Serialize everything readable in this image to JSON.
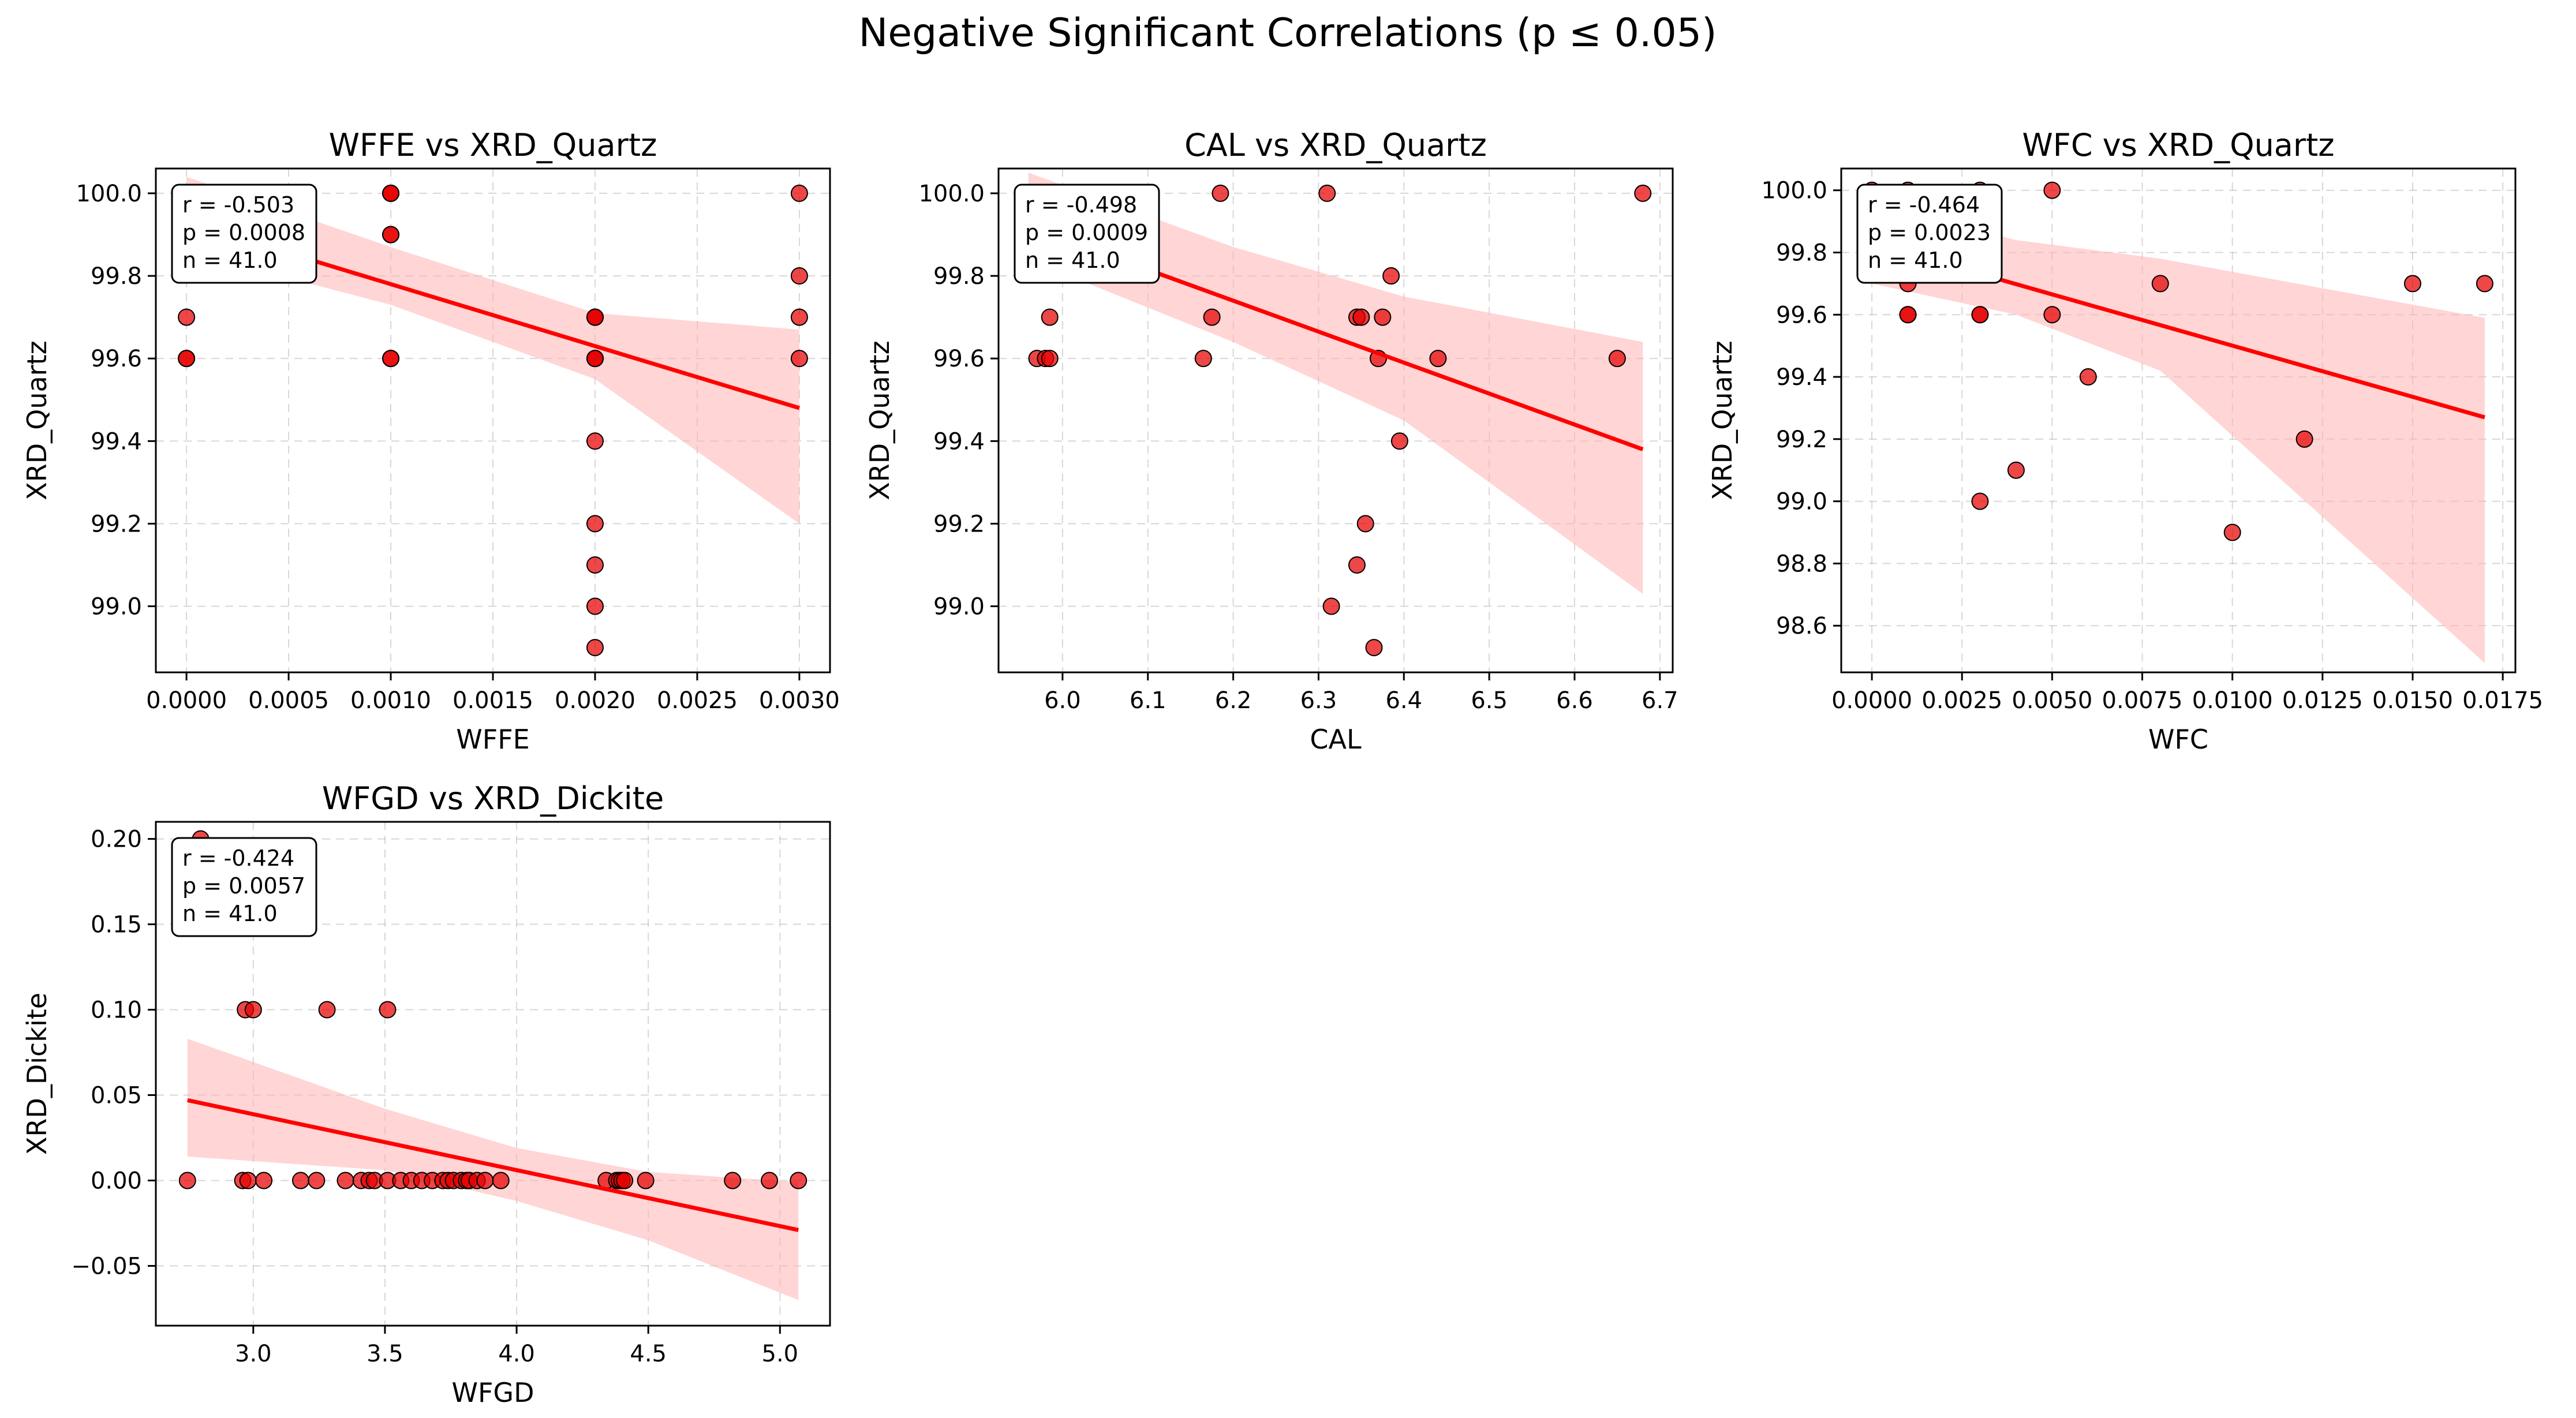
{
  "figure_title": "Negative Significant Correlations (p ≤ 0.05)",
  "chart_data": [
    {
      "type": "scatter",
      "title": "WFFE vs XRD_Quartz",
      "xlabel": "WFFE",
      "ylabel": "XRD_Quartz",
      "xlim": [
        -0.00015,
        0.00315
      ],
      "ylim": [
        98.84,
        100.06
      ],
      "xticks": [
        0.0,
        0.0005,
        0.001,
        0.0015,
        0.002,
        0.0025,
        0.003
      ],
      "xtick_labels": [
        "0.0000",
        "0.0005",
        "0.0010",
        "0.0015",
        "0.0020",
        "0.0025",
        "0.0030"
      ],
      "yticks": [
        99.0,
        99.2,
        99.4,
        99.6,
        99.8,
        100.0
      ],
      "ytick_labels": [
        "99.0",
        "99.2",
        "99.4",
        "99.6",
        "99.8",
        "100.0"
      ],
      "stats": [
        "r = -0.503",
        "p = 0.0008",
        "n = 41.0"
      ],
      "points": [
        [
          0,
          100.0
        ],
        [
          0,
          100.0
        ],
        [
          0,
          99.9
        ],
        [
          0,
          99.9
        ],
        [
          0,
          99.7
        ],
        [
          0,
          99.6
        ],
        [
          0,
          99.6
        ],
        [
          0.001,
          100.0
        ],
        [
          0.001,
          100.0
        ],
        [
          0.001,
          100.0
        ],
        [
          0.001,
          99.9
        ],
        [
          0.001,
          99.9
        ],
        [
          0.001,
          99.6
        ],
        [
          0.001,
          99.6
        ],
        [
          0.002,
          99.7
        ],
        [
          0.002,
          99.7
        ],
        [
          0.002,
          99.7
        ],
        [
          0.002,
          99.6
        ],
        [
          0.002,
          99.6
        ],
        [
          0.002,
          99.6
        ],
        [
          0.002,
          99.4
        ],
        [
          0.002,
          99.2
        ],
        [
          0.002,
          99.1
        ],
        [
          0.002,
          99.0
        ],
        [
          0.002,
          98.9
        ],
        [
          0.003,
          100.0
        ],
        [
          0.003,
          99.8
        ],
        [
          0.003,
          99.7
        ],
        [
          0.003,
          99.6
        ]
      ],
      "fit": {
        "x": [
          0.0,
          0.003
        ],
        "y": [
          99.93,
          99.48
        ]
      },
      "ci": {
        "x": [
          0.0,
          0.001,
          0.002,
          0.003
        ],
        "lower": [
          99.86,
          99.73,
          99.55,
          99.2
        ],
        "upper": [
          100.04,
          99.87,
          99.71,
          99.67
        ]
      }
    },
    {
      "type": "scatter",
      "title": "CAL vs XRD_Quartz",
      "xlabel": "CAL",
      "ylabel": "XRD_Quartz",
      "xlim": [
        5.925,
        6.715
      ],
      "ylim": [
        98.84,
        100.06
      ],
      "xticks": [
        6.0,
        6.1,
        6.2,
        6.3,
        6.4,
        6.5,
        6.6,
        6.7
      ],
      "xtick_labels": [
        "6.0",
        "6.1",
        "6.2",
        "6.3",
        "6.4",
        "6.5",
        "6.6",
        "6.7"
      ],
      "yticks": [
        99.0,
        99.2,
        99.4,
        99.6,
        99.8,
        100.0
      ],
      "ytick_labels": [
        "99.0",
        "99.2",
        "99.4",
        "99.6",
        "99.8",
        "100.0"
      ],
      "stats": [
        "r = -0.498",
        "p = 0.0009",
        "n = 41.0"
      ],
      "points": [
        [
          5.96,
          100.0
        ],
        [
          5.97,
          100.0
        ],
        [
          5.98,
          100.0
        ],
        [
          5.99,
          100.0
        ],
        [
          6.005,
          100.0
        ],
        [
          6.185,
          100.0
        ],
        [
          6.31,
          100.0
        ],
        [
          6.68,
          100.0
        ],
        [
          5.975,
          99.9
        ],
        [
          6.385,
          99.8
        ],
        [
          5.985,
          99.7
        ],
        [
          6.175,
          99.7
        ],
        [
          6.345,
          99.7
        ],
        [
          6.35,
          99.7
        ],
        [
          6.375,
          99.7
        ],
        [
          5.97,
          99.6
        ],
        [
          5.98,
          99.6
        ],
        [
          5.985,
          99.6
        ],
        [
          6.165,
          99.6
        ],
        [
          6.37,
          99.6
        ],
        [
          6.44,
          99.6
        ],
        [
          6.65,
          99.6
        ],
        [
          6.395,
          99.4
        ],
        [
          6.355,
          99.2
        ],
        [
          6.345,
          99.1
        ],
        [
          6.315,
          99.0
        ],
        [
          6.365,
          98.9
        ]
      ],
      "fit": {
        "x": [
          5.96,
          6.68
        ],
        "y": [
          99.92,
          99.38
        ]
      },
      "ci": {
        "x": [
          5.96,
          6.2,
          6.4,
          6.68
        ],
        "lower": [
          99.84,
          99.64,
          99.45,
          99.03
        ],
        "upper": [
          100.05,
          99.87,
          99.75,
          99.64
        ]
      }
    },
    {
      "type": "scatter",
      "title": "WFC vs XRD_Quartz",
      "xlabel": "WFC",
      "ylabel": "XRD_Quartz",
      "xlim": [
        -0.00085,
        0.01785
      ],
      "ylim": [
        98.45,
        100.07
      ],
      "xticks": [
        0.0,
        0.0025,
        0.005,
        0.0075,
        0.01,
        0.0125,
        0.015,
        0.0175
      ],
      "xtick_labels": [
        "0.0000",
        "0.0025",
        "0.0050",
        "0.0075",
        "0.0100",
        "0.0125",
        "0.0150",
        "0.0175"
      ],
      "yticks": [
        98.6,
        98.8,
        99.0,
        99.2,
        99.4,
        99.6,
        99.8,
        100.0
      ],
      "ytick_labels": [
        "98.6",
        "98.8",
        "99.0",
        "99.2",
        "99.4",
        "99.6",
        "99.8",
        "100.0"
      ],
      "stats": [
        "r = -0.464",
        "p = 0.0023",
        "n = 41.0"
      ],
      "points": [
        [
          0,
          100.0
        ],
        [
          0.001,
          100.0
        ],
        [
          0.003,
          100.0
        ],
        [
          0.005,
          100.0
        ],
        [
          0.001,
          99.9
        ],
        [
          0.001,
          99.7
        ],
        [
          0.001,
          99.6
        ],
        [
          0.001,
          99.6
        ],
        [
          0.003,
          99.6
        ],
        [
          0.003,
          99.6
        ],
        [
          0.005,
          99.6
        ],
        [
          0.008,
          99.7
        ],
        [
          0.015,
          99.7
        ],
        [
          0.017,
          99.7
        ],
        [
          0.006,
          99.4
        ],
        [
          0.012,
          99.2
        ],
        [
          0.004,
          99.1
        ],
        [
          0.003,
          99.0
        ],
        [
          0.01,
          98.9
        ]
      ],
      "fit": {
        "x": [
          0.0,
          0.017
        ],
        "y": [
          99.83,
          99.27
        ]
      },
      "ci": {
        "x": [
          0.0,
          0.004,
          0.008,
          0.017
        ],
        "lower": [
          99.7,
          99.6,
          99.42,
          98.48
        ],
        "upper": [
          99.96,
          99.84,
          99.78,
          99.59
        ]
      }
    },
    {
      "type": "scatter",
      "title": "WFGD vs XRD_Dickite",
      "xlabel": "WFGD",
      "ylabel": "XRD_Dickite",
      "xlim": [
        2.63,
        5.19
      ],
      "ylim": [
        -0.085,
        0.21
      ],
      "xticks": [
        3.0,
        3.5,
        4.0,
        4.5,
        5.0
      ],
      "xtick_labels": [
        "3.0",
        "3.5",
        "4.0",
        "4.5",
        "5.0"
      ],
      "yticks": [
        -0.05,
        0.0,
        0.05,
        0.1,
        0.15,
        0.2
      ],
      "ytick_labels": [
        "−0.05",
        "0.00",
        "0.05",
        "0.10",
        "0.15",
        "0.20"
      ],
      "stats": [
        "r = -0.424",
        "p = 0.0057",
        "n = 41.0"
      ],
      "points": [
        [
          2.8,
          0.2
        ],
        [
          2.97,
          0.1
        ],
        [
          3.0,
          0.1
        ],
        [
          3.28,
          0.1
        ],
        [
          3.51,
          0.1
        ],
        [
          2.75,
          0
        ],
        [
          2.96,
          0
        ],
        [
          2.98,
          0
        ],
        [
          3.04,
          0
        ],
        [
          3.18,
          0
        ],
        [
          3.24,
          0
        ],
        [
          3.35,
          0
        ],
        [
          3.41,
          0
        ],
        [
          3.44,
          0
        ],
        [
          3.46,
          0
        ],
        [
          3.51,
          0
        ],
        [
          3.56,
          0
        ],
        [
          3.6,
          0
        ],
        [
          3.64,
          0
        ],
        [
          3.68,
          0
        ],
        [
          3.72,
          0
        ],
        [
          3.74,
          0
        ],
        [
          3.76,
          0
        ],
        [
          3.79,
          0
        ],
        [
          3.81,
          0
        ],
        [
          3.82,
          0
        ],
        [
          3.85,
          0
        ],
        [
          3.88,
          0
        ],
        [
          3.94,
          0
        ],
        [
          4.34,
          0
        ],
        [
          4.38,
          0
        ],
        [
          4.39,
          0
        ],
        [
          4.4,
          0
        ],
        [
          4.41,
          0
        ],
        [
          4.49,
          0
        ],
        [
          4.82,
          0
        ],
        [
          4.96,
          0
        ],
        [
          5.07,
          0
        ]
      ],
      "fit": {
        "x": [
          2.75,
          5.07
        ],
        "y": [
          0.047,
          -0.029
        ]
      },
      "ci": {
        "x": [
          2.75,
          3.5,
          4.0,
          4.5,
          5.07
        ],
        "lower": [
          0.014,
          0.006,
          -0.012,
          -0.035,
          -0.07
        ],
        "upper": [
          0.083,
          0.042,
          0.019,
          0.005,
          -0.001
        ]
      }
    }
  ]
}
